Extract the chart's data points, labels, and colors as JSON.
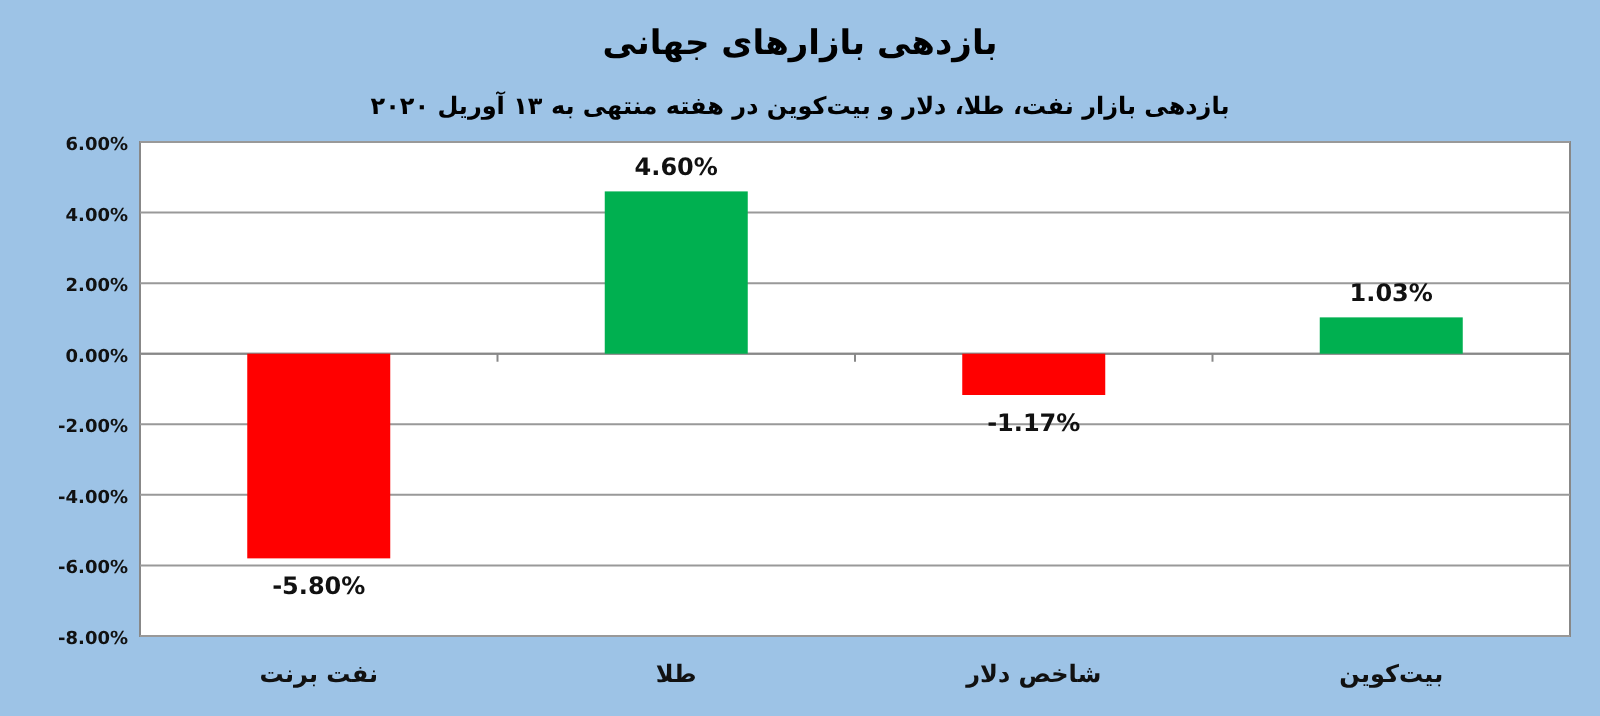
{
  "chart_data": {
    "type": "bar",
    "title": "بازدهی بازارهای جهانی",
    "subtitle": "بازدهی بازار نفت، طلا، دلار و بیت‌کوین در هفته منتهی به ۱۳ آوریل ۲۰۲۰",
    "categories": [
      "نفت برنت",
      "طلا",
      "شاخص دلار",
      "بیت‌کوین"
    ],
    "values": [
      -5.8,
      4.6,
      -1.17,
      1.03
    ],
    "colors": [
      "#ff0000",
      "#00b050",
      "#ff0000",
      "#00b050"
    ],
    "value_labels": [
      "-5.80%",
      "4.60%",
      "-1.17%",
      "1.03%"
    ],
    "ylim": [
      -8,
      6
    ],
    "yticks": [
      {
        "value": -8,
        "label": "-8.00%"
      },
      {
        "value": -6,
        "label": "-6.00%"
      },
      {
        "value": -4,
        "label": "-4.00%"
      },
      {
        "value": -2,
        "label": "-2.00%"
      },
      {
        "value": 0,
        "label": "0.00%"
      },
      {
        "value": 2,
        "label": "2.00%"
      },
      {
        "value": 4,
        "label": "4.00%"
      },
      {
        "value": 6,
        "label": "6.00%"
      }
    ],
    "grid": "y"
  }
}
